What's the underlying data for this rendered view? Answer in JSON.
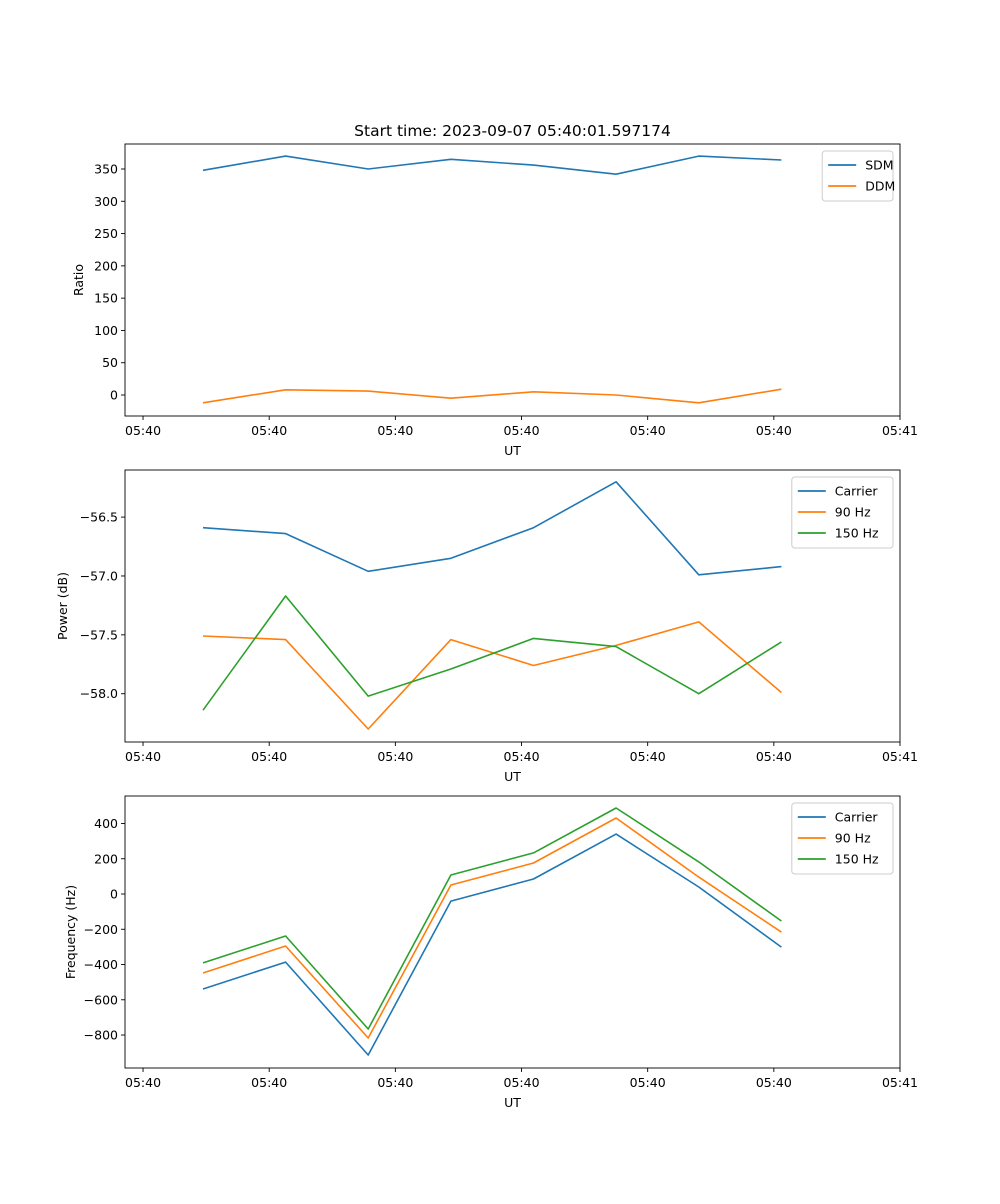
{
  "chart_data": [
    {
      "type": "line",
      "title": "Start time: 2023-09-07 05:40:01.597174",
      "xlabel": "UT",
      "ylabel": "Ratio",
      "x": [
        4.75,
        11.3,
        17.85,
        24.4,
        30.95,
        37.5,
        44.05,
        50.6
      ],
      "xlim": [
        -1.43,
        60
      ],
      "xticks": [
        0,
        10,
        20,
        30,
        40,
        50,
        60
      ],
      "xtick_labels": [
        "05:40",
        "05:40",
        "05:40",
        "05:40",
        "05:40",
        "05:40",
        "05:41"
      ],
      "ylim": [
        -32.5,
        388.7
      ],
      "yticks": [
        0,
        50,
        100,
        150,
        200,
        250,
        300,
        350
      ],
      "ytick_labels": [
        "0",
        "50",
        "100",
        "150",
        "200",
        "250",
        "300",
        "350"
      ],
      "legend": "top-right",
      "series": [
        {
          "name": "SDM",
          "color": "#1f77b4",
          "values": [
            348,
            370,
            350,
            365,
            356,
            342,
            370,
            364
          ]
        },
        {
          "name": "DDM",
          "color": "#ff7f0e",
          "values": [
            -12,
            8,
            6,
            -5,
            5,
            0,
            -12,
            9
          ]
        }
      ]
    },
    {
      "type": "line",
      "xlabel": "UT",
      "ylabel": "Power (dB)",
      "x": [
        4.75,
        11.3,
        17.85,
        24.4,
        30.95,
        37.5,
        44.05,
        50.6
      ],
      "xlim": [
        -1.43,
        60
      ],
      "xticks": [
        0,
        10,
        20,
        30,
        40,
        50,
        60
      ],
      "xtick_labels": [
        "05:40",
        "05:40",
        "05:40",
        "05:40",
        "05:40",
        "05:40",
        "05:41"
      ],
      "ylim": [
        -58.41,
        -56.1
      ],
      "yticks": [
        -58.0,
        -57.5,
        -57.0,
        -56.5
      ],
      "ytick_labels": [
        "−58.0",
        "−57.5",
        "−57.0",
        "−56.5"
      ],
      "legend": "top-right",
      "series": [
        {
          "name": "Carrier",
          "color": "#1f77b4",
          "values": [
            -56.59,
            -56.64,
            -56.96,
            -56.85,
            -56.59,
            -56.2,
            -56.99,
            -56.92
          ]
        },
        {
          "name": "90 Hz",
          "color": "#ff7f0e",
          "values": [
            -57.51,
            -57.54,
            -58.3,
            -57.54,
            -57.76,
            -57.59,
            -57.39,
            -57.99
          ]
        },
        {
          "name": "150 Hz",
          "color": "#2ca02c",
          "values": [
            -58.14,
            -57.17,
            -58.02,
            -57.79,
            -57.53,
            -57.6,
            -58.0,
            -57.56
          ]
        }
      ]
    },
    {
      "type": "line",
      "xlabel": "UT",
      "ylabel": "Frequency (Hz)",
      "x": [
        4.75,
        11.3,
        17.85,
        24.4,
        30.95,
        37.5,
        44.05,
        50.6
      ],
      "xlim": [
        -1.43,
        60
      ],
      "xticks": [
        0,
        10,
        20,
        30,
        40,
        50,
        60
      ],
      "xtick_labels": [
        "05:40",
        "05:40",
        "05:40",
        "05:40",
        "05:40",
        "05:40",
        "05:41"
      ],
      "ylim": [
        -987,
        556
      ],
      "yticks": [
        -800,
        -600,
        -400,
        -200,
        0,
        200,
        400
      ],
      "ytick_labels": [
        "−800",
        "−600",
        "−400",
        "−200",
        "0",
        "200",
        "400"
      ],
      "legend": "top-right",
      "series": [
        {
          "name": "Carrier",
          "color": "#1f77b4",
          "values": [
            -539,
            -386,
            -913,
            -40,
            85,
            340,
            40,
            -301
          ]
        },
        {
          "name": "90 Hz",
          "color": "#ff7f0e",
          "values": [
            -448,
            -295,
            -817,
            51,
            176,
            431,
            96,
            -216
          ]
        },
        {
          "name": "150 Hz",
          "color": "#2ca02c",
          "values": [
            -391,
            -238,
            -766,
            108,
            233,
            488,
            182,
            -153
          ]
        }
      ]
    }
  ]
}
